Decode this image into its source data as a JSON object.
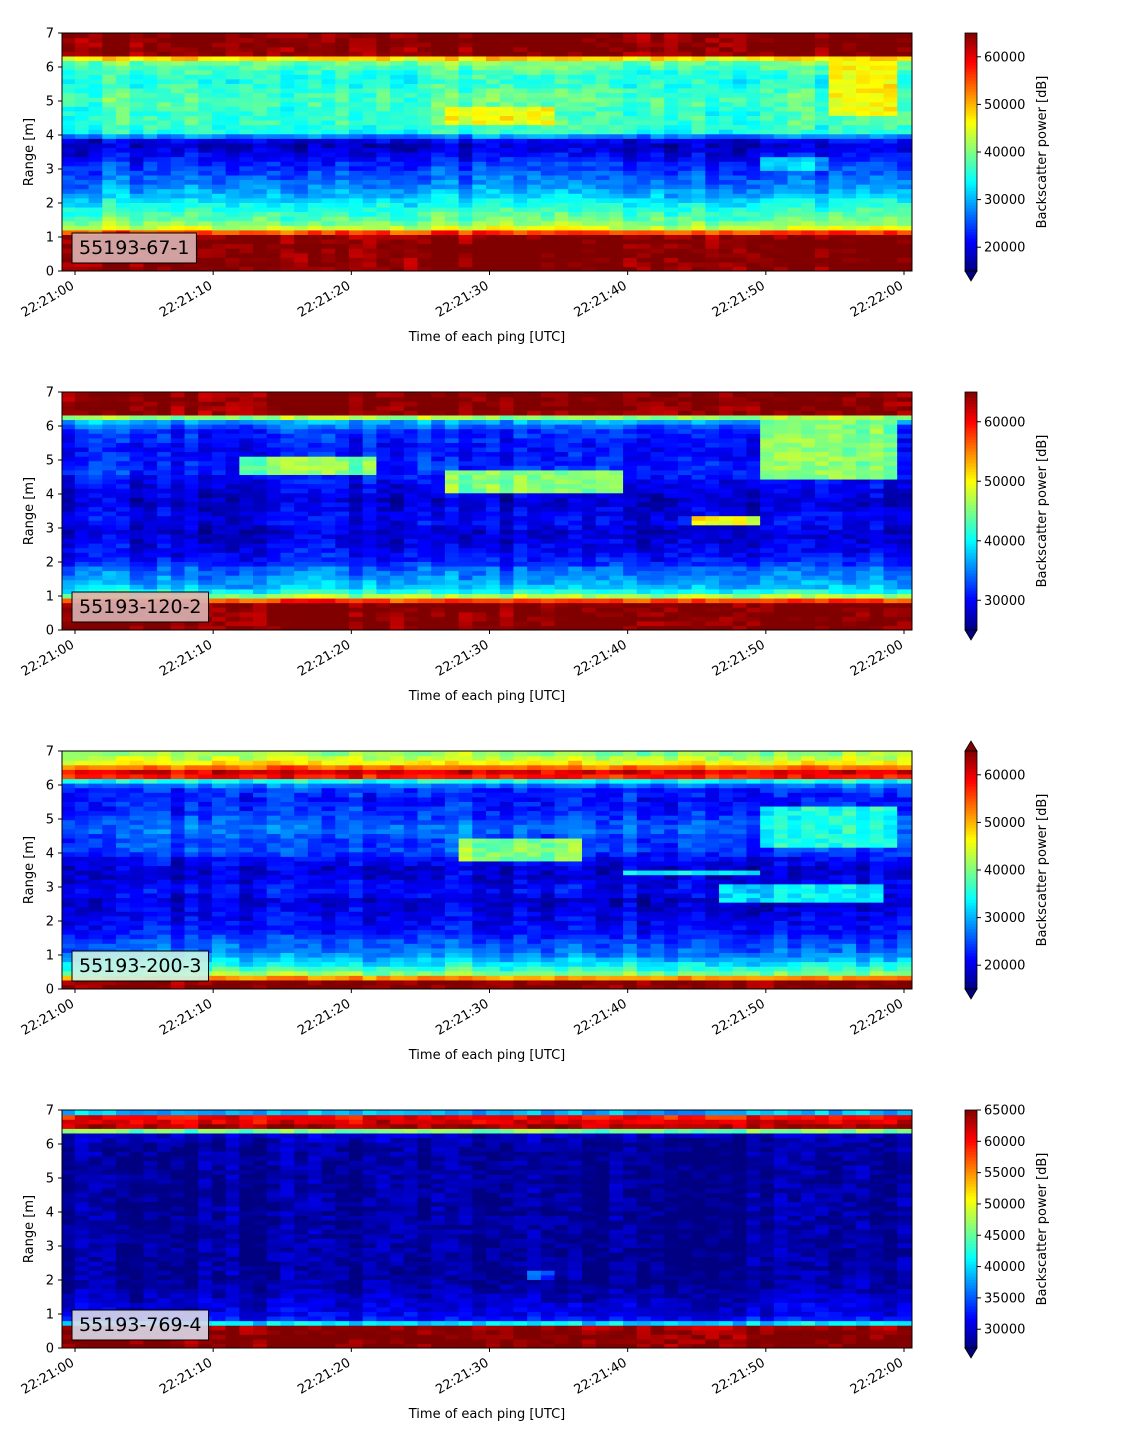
{
  "chart_data": [
    {
      "type": "heatmap",
      "label": "55193-67-1",
      "label_box_color": "#d9b3b3",
      "xlabel": "Time of each ping [UTC]",
      "ylabel": "Range [m]",
      "colorbar_label": "Backscatter power [dB]",
      "colormap": "jet",
      "xlim": [
        "22:21:00",
        "22:22:00"
      ],
      "xticks": [
        "22:21:00",
        "22:21:10",
        "22:21:20",
        "22:21:30",
        "22:21:40",
        "22:21:50",
        "22:22:00"
      ],
      "ylim": [
        0,
        7
      ],
      "yticks": [
        "0",
        "1",
        "2",
        "3",
        "4",
        "5",
        "6",
        "7"
      ],
      "clim": [
        15000,
        65000
      ],
      "colorbar_ticks": [
        "20000",
        "30000",
        "40000",
        "50000",
        "60000"
      ],
      "colorbar_tick_values": [
        20000,
        30000,
        40000,
        50000,
        60000
      ],
      "colorbar_extend": "min",
      "profile_range_m": [
        0.0,
        0.2,
        0.4,
        0.6,
        0.8,
        1.0,
        1.15,
        1.3,
        1.5,
        1.8,
        2.0,
        2.3,
        2.6,
        2.9,
        3.2,
        3.5,
        3.8,
        4.1,
        4.4,
        4.7,
        5.0,
        5.3,
        5.6,
        5.9,
        6.2,
        6.4,
        6.6,
        7.0
      ],
      "profile_power": [
        65000,
        65000,
        65000,
        65000,
        65000,
        65000,
        55000,
        42000,
        39000,
        36000,
        34000,
        30000,
        27000,
        25000,
        23000,
        20000,
        18000,
        35000,
        37000,
        36000,
        38000,
        37000,
        35000,
        37000,
        40000,
        65000,
        65000,
        65000
      ],
      "features": [
        {
          "t0": "22:21:27",
          "t1": "22:21:35",
          "r0": 4.3,
          "r1": 4.8,
          "power": 45000
        },
        {
          "t0": "22:21:50",
          "t1": "22:21:55",
          "r0": 2.9,
          "r1": 3.3,
          "power": 30000
        },
        {
          "t0": "22:21:55",
          "t1": "22:22:00",
          "r0": 4.6,
          "r1": 6.2,
          "power": 45000
        }
      ]
    },
    {
      "type": "heatmap",
      "label": "55193-120-2",
      "label_box_color": "#d9b3b3",
      "xlabel": "Time of each ping [UTC]",
      "ylabel": "Range [m]",
      "colorbar_label": "Backscatter power [dB]",
      "colormap": "jet",
      "xlim": [
        "22:21:00",
        "22:22:00"
      ],
      "xticks": [
        "22:21:00",
        "22:21:10",
        "22:21:20",
        "22:21:30",
        "22:21:40",
        "22:21:50",
        "22:22:00"
      ],
      "ylim": [
        0,
        7
      ],
      "yticks": [
        "0",
        "1",
        "2",
        "3",
        "4",
        "5",
        "6",
        "7"
      ],
      "clim": [
        25000,
        65000
      ],
      "colorbar_ticks": [
        "30000",
        "40000",
        "50000",
        "60000"
      ],
      "colorbar_tick_values": [
        30000,
        40000,
        50000,
        60000
      ],
      "colorbar_extend": "min",
      "profile_range_m": [
        0.0,
        0.2,
        0.4,
        0.6,
        0.8,
        0.9,
        1.0,
        1.2,
        1.5,
        1.8,
        2.0,
        2.3,
        2.6,
        2.9,
        3.2,
        3.5,
        3.8,
        4.1,
        4.4,
        4.7,
        5.0,
        5.3,
        5.6,
        5.9,
        6.2,
        6.4,
        6.6,
        7.0
      ],
      "profile_power": [
        65000,
        65000,
        65000,
        65000,
        65000,
        55000,
        47000,
        38000,
        36000,
        34000,
        31000,
        30000,
        29000,
        28000,
        30000,
        29000,
        28000,
        29000,
        30000,
        32000,
        31000,
        30000,
        31000,
        32000,
        38000,
        65000,
        65000,
        65000
      ],
      "features": [
        {
          "t0": "22:21:12",
          "t1": "22:21:22",
          "r0": 4.6,
          "r1": 5.1,
          "power": 45000
        },
        {
          "t0": "22:21:27",
          "t1": "22:21:40",
          "r0": 4.1,
          "r1": 4.7,
          "power": 45000
        },
        {
          "t0": "22:21:45",
          "t1": "22:21:50",
          "r0": 3.1,
          "r1": 3.4,
          "power": 50000
        },
        {
          "t0": "22:21:50",
          "t1": "22:22:00",
          "r0": 4.4,
          "r1": 6.2,
          "power": 45000
        }
      ]
    },
    {
      "type": "heatmap",
      "label": "55193-200-3",
      "label_box_color": "#ccf2e5",
      "xlabel": "Time of each ping [UTC]",
      "ylabel": "Range [m]",
      "colorbar_label": "Backscatter power [dB]",
      "colormap": "jet",
      "xlim": [
        "22:21:00",
        "22:22:00"
      ],
      "xticks": [
        "22:21:00",
        "22:21:10",
        "22:21:20",
        "22:21:30",
        "22:21:40",
        "22:21:50",
        "22:22:00"
      ],
      "ylim": [
        0,
        7
      ],
      "yticks": [
        "0",
        "1",
        "2",
        "3",
        "4",
        "5",
        "6",
        "7"
      ],
      "clim": [
        15000,
        65000
      ],
      "colorbar_ticks": [
        "20000",
        "30000",
        "40000",
        "50000",
        "60000"
      ],
      "colorbar_tick_values": [
        20000,
        30000,
        40000,
        50000,
        60000
      ],
      "colorbar_extend": "both",
      "profile_range_m": [
        0.0,
        0.2,
        0.35,
        0.5,
        0.7,
        0.9,
        1.1,
        1.4,
        1.7,
        2.0,
        2.3,
        2.6,
        2.9,
        3.2,
        3.5,
        3.8,
        4.1,
        4.4,
        4.7,
        5.0,
        5.3,
        5.6,
        5.9,
        6.1,
        6.3,
        6.5,
        6.7,
        7.0
      ],
      "profile_power": [
        65000,
        65000,
        50000,
        38000,
        34000,
        30000,
        27000,
        25000,
        22000,
        21000,
        20000,
        19000,
        22000,
        20000,
        19000,
        21000,
        25000,
        24000,
        27000,
        25000,
        23000,
        22000,
        24000,
        30000,
        65000,
        55000,
        45000,
        40000
      ],
      "features": [
        {
          "t0": "22:21:28",
          "t1": "22:21:37",
          "r0": 3.8,
          "r1": 4.4,
          "power": 40000
        },
        {
          "t0": "22:21:40",
          "t1": "22:21:50",
          "r0": 3.3,
          "r1": 3.5,
          "power": 33000
        },
        {
          "t0": "22:21:47",
          "t1": "22:21:59",
          "r0": 2.6,
          "r1": 3.1,
          "power": 33000
        },
        {
          "t0": "22:21:50",
          "t1": "22:22:00",
          "r0": 4.2,
          "r1": 5.4,
          "power": 35000
        }
      ]
    },
    {
      "type": "heatmap",
      "label": "55193-769-4",
      "label_box_color": "#d9d9ea",
      "xlabel": "Time of each ping [UTC]",
      "ylabel": "Range [m]",
      "colorbar_label": "Backscatter power [dB]",
      "colormap": "jet",
      "xlim": [
        "22:21:00",
        "22:22:00"
      ],
      "xticks": [
        "22:21:00",
        "22:21:10",
        "22:21:20",
        "22:21:30",
        "22:21:40",
        "22:21:50",
        "22:22:00"
      ],
      "ylim": [
        0,
        7
      ],
      "yticks": [
        "0",
        "1",
        "2",
        "3",
        "4",
        "5",
        "6",
        "7"
      ],
      "clim": [
        27000,
        65000
      ],
      "colorbar_ticks": [
        "30000",
        "35000",
        "40000",
        "45000",
        "50000",
        "55000",
        "60000",
        "65000"
      ],
      "colorbar_tick_values": [
        30000,
        35000,
        40000,
        45000,
        50000,
        55000,
        60000,
        65000
      ],
      "colorbar_extend": "min",
      "profile_range_m": [
        0.0,
        0.2,
        0.4,
        0.6,
        0.7,
        0.8,
        1.0,
        1.3,
        1.6,
        2.0,
        2.5,
        3.0,
        3.5,
        4.0,
        4.5,
        5.0,
        5.5,
        6.0,
        6.35,
        6.45,
        6.6,
        6.8,
        6.9,
        7.0
      ],
      "profile_power": [
        65000,
        65000,
        65000,
        65000,
        45000,
        33000,
        31000,
        30000,
        29000,
        28000,
        28000,
        28000,
        28000,
        28000,
        28000,
        28000,
        28000,
        28000,
        30000,
        65000,
        62000,
        60000,
        40000,
        35000
      ],
      "features": [
        {
          "t0": "22:21:33",
          "t1": "22:21:35",
          "r0": 2.0,
          "r1": 2.3,
          "power": 34000
        },
        {
          "t0": "22:21:40",
          "t1": "22:21:42",
          "r0": 6.4,
          "r1": 6.9,
          "power": 60000
        }
      ]
    }
  ]
}
